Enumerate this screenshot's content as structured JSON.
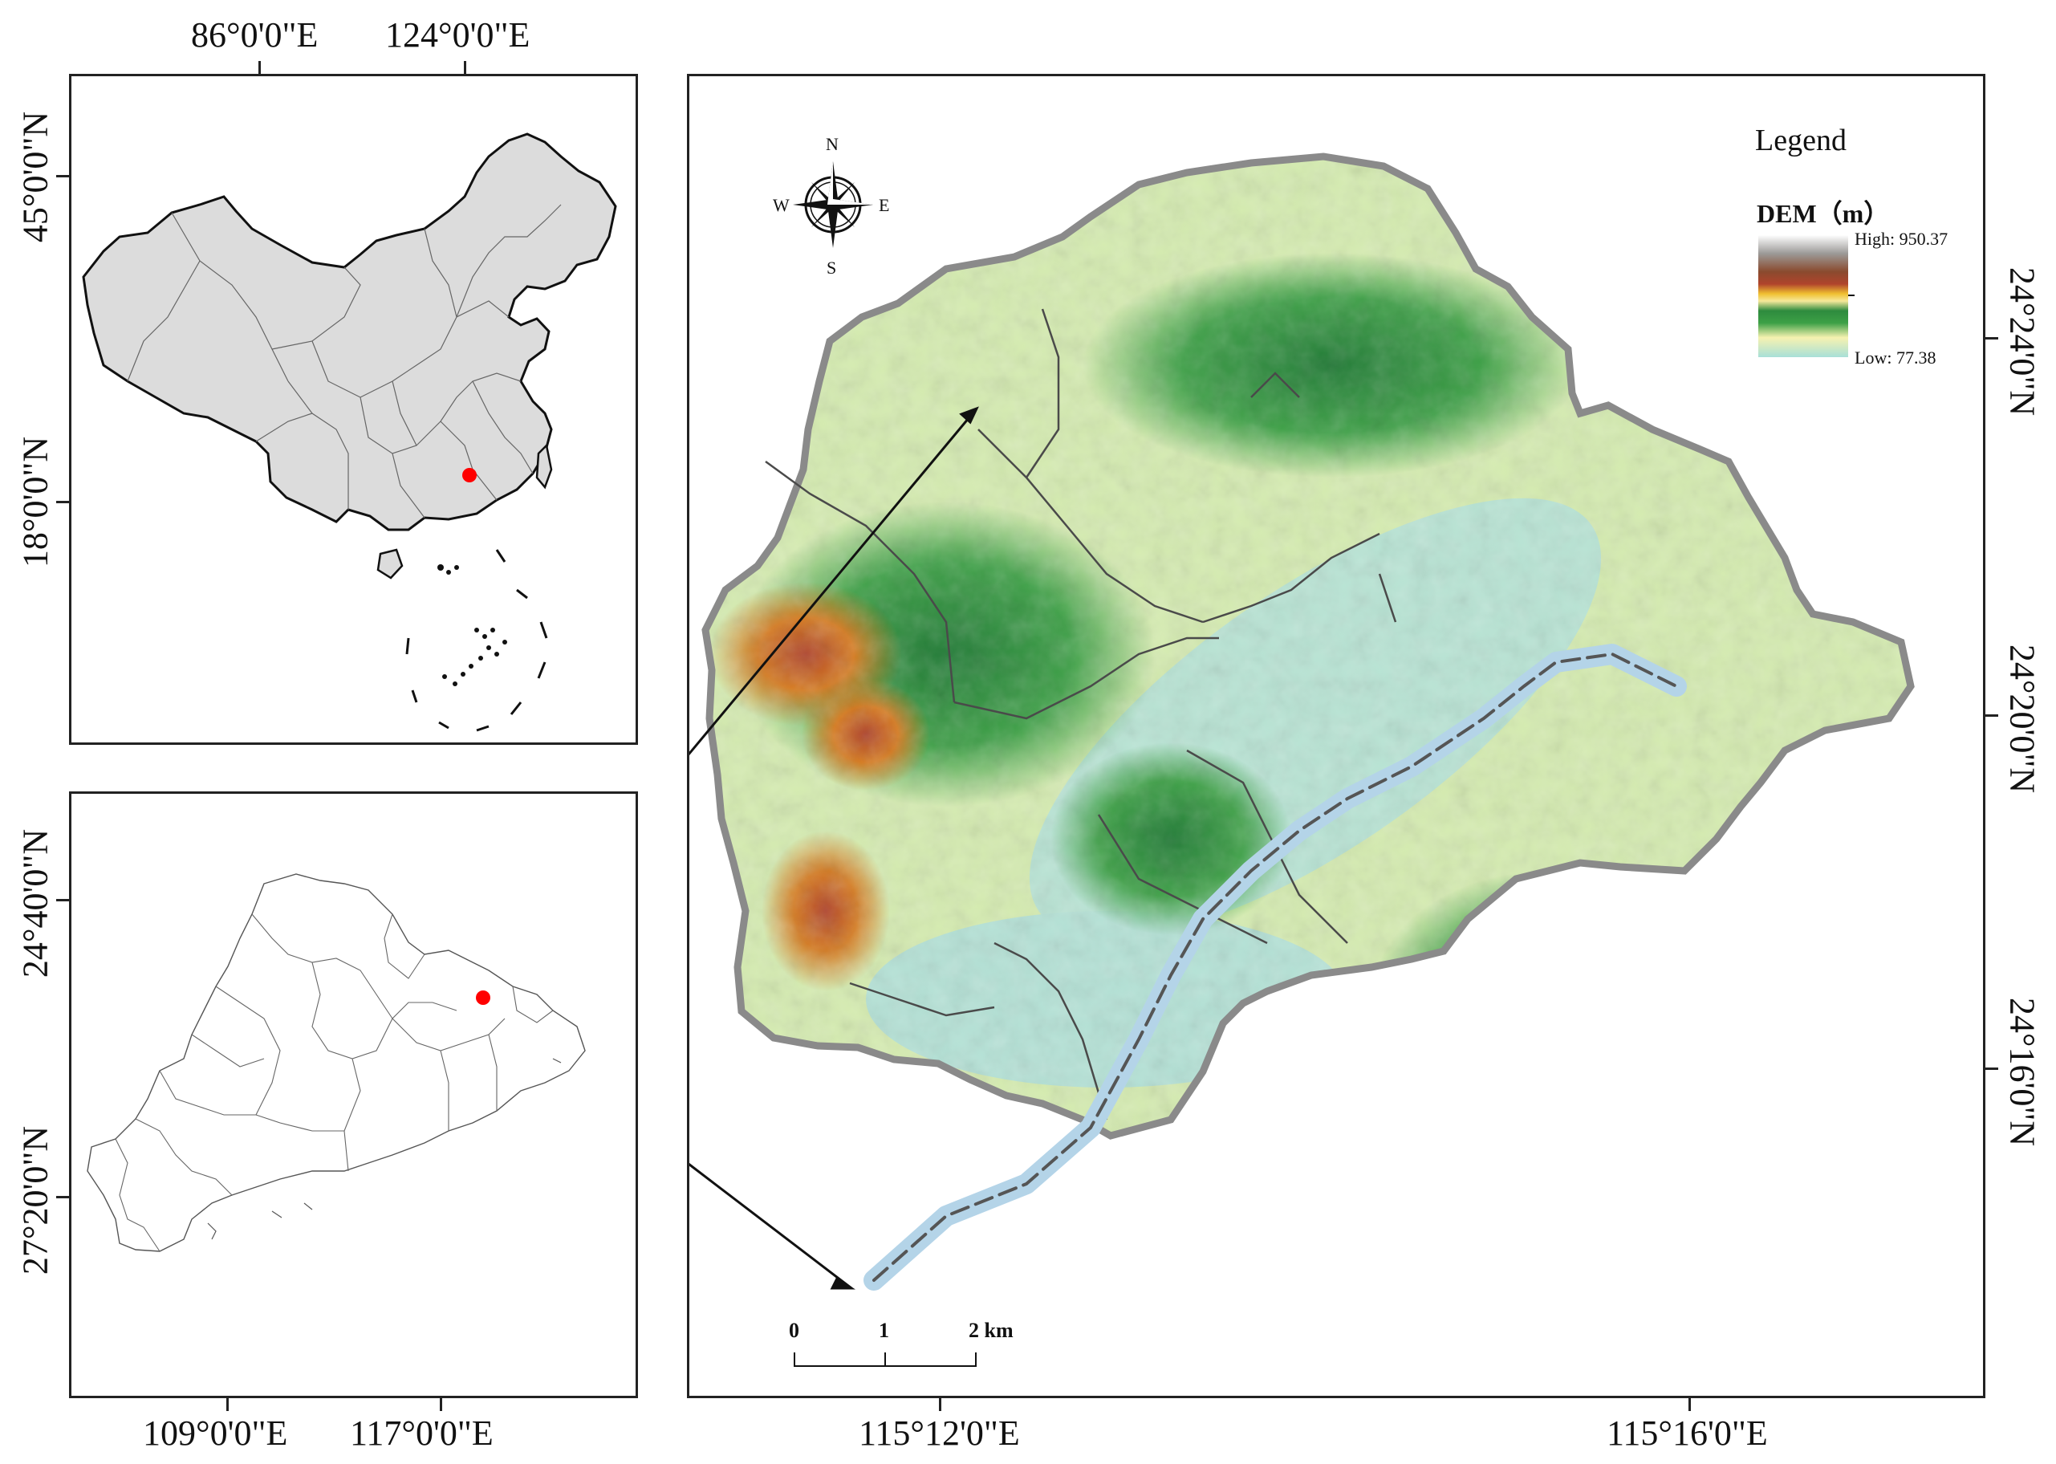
{
  "top_labels": {
    "lon_1": "86°0'0\"E",
    "lon_2": "124°0'0\"E"
  },
  "china_map": {
    "lat_1": "45°0'0\"N",
    "lat_2": "18°0'0\"N",
    "fill": "#dcdcdc",
    "marker_color": "#ff0000"
  },
  "province_map": {
    "lat_1": "24°40'0\"N",
    "lat_2": "27°20'0\"N",
    "lon_1": "109°0'0\"E",
    "lon_2": "117°0'0\"E",
    "marker_color": "#ff0000"
  },
  "study_area": {
    "lon_1": "115°12'0\"E",
    "lon_2": "115°16'0\"E",
    "lat_1": "24°24'0\"N",
    "lat_2": "24°20'0\"N",
    "lat_3": "24°16'0\"N"
  },
  "compass": {
    "n": "N",
    "s": "S",
    "e": "E",
    "w": "W"
  },
  "legend": {
    "title": "Legend",
    "subtitle": "DEM（m）",
    "high": "High: 950.37",
    "low": "Low: 77.38",
    "high_value": 950.37,
    "low_value": 77.38,
    "colors": [
      "#ffffff",
      "#9c9a98",
      "#8a4a2e",
      "#b0442c",
      "#d67a1e",
      "#f0c030",
      "#f6e89a",
      "#2e8b3e",
      "#3da046",
      "#b6d98e",
      "#f6f2b0",
      "#d5f0b0",
      "#a8e0d8"
    ]
  },
  "scale_bar": {
    "n0": "0",
    "n1": "1",
    "n2": "2 km"
  }
}
